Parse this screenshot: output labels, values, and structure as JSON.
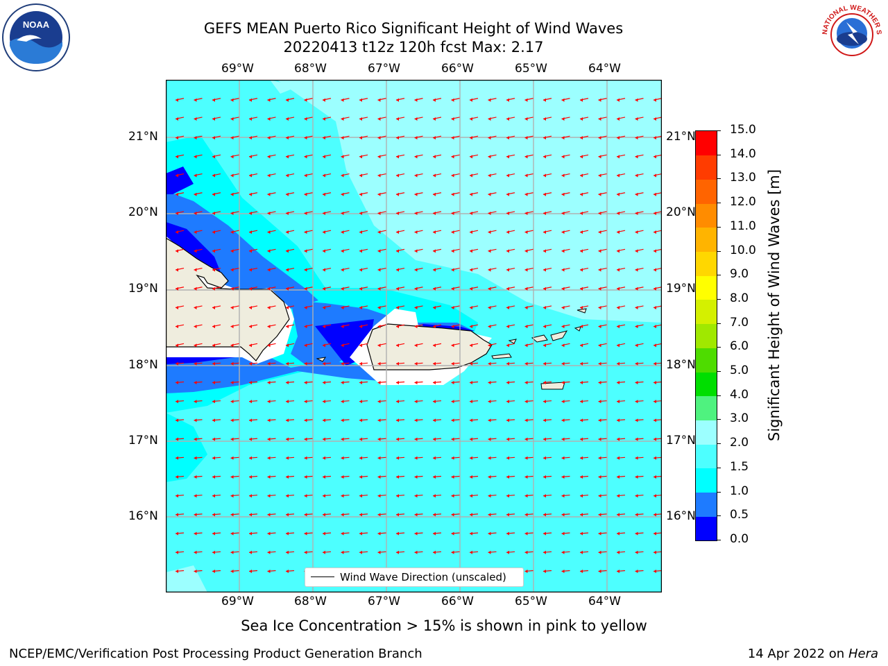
{
  "title": {
    "line1": "GEFS MEAN Puerto Rico Significant Height of Wind Waves",
    "line2": "20220413 t12z 120h fcst   Max: 2.17"
  },
  "logos": {
    "left": "NOAA",
    "right": "NATIONAL WEATHER SERVICE"
  },
  "map": {
    "lon_labels": [
      "69°W",
      "68°W",
      "67°W",
      "66°W",
      "65°W",
      "64°W"
    ],
    "lat_labels": [
      "21°N",
      "20°N",
      "19°N",
      "18°N",
      "17°N",
      "16°N"
    ],
    "legend_label": "Wind Wave Direction (unscaled)",
    "arrow_color": "#ff0000",
    "land_color": "#efedde"
  },
  "colorbar": {
    "ticks": [
      "0.0",
      "0.5",
      "1.0",
      "1.5",
      "2.0",
      "3.0",
      "4.0",
      "5.0",
      "6.0",
      "7.0",
      "8.0",
      "9.0",
      "10.0",
      "11.0",
      "12.0",
      "13.0",
      "14.0",
      "15.0"
    ],
    "colors": [
      "#0000ff",
      "#1e7bff",
      "#00ffff",
      "#4dffff",
      "#9cffff",
      "#4ff27f",
      "#00de00",
      "#4edc00",
      "#a0e800",
      "#d4f000",
      "#ffff00",
      "#ffd700",
      "#ffb400",
      "#ff8c00",
      "#ff6400",
      "#ff3c00",
      "#ff0000"
    ],
    "label": "Significant Height of Wind Waves [m]"
  },
  "notes": {
    "sea_ice": "Sea Ice Concentration > 15% is shown in pink to yellow",
    "left": "NCEP/EMC/Verification Post Processing Product Generation Branch",
    "date": "14 Apr 2022 on ",
    "host": "Hera"
  }
}
